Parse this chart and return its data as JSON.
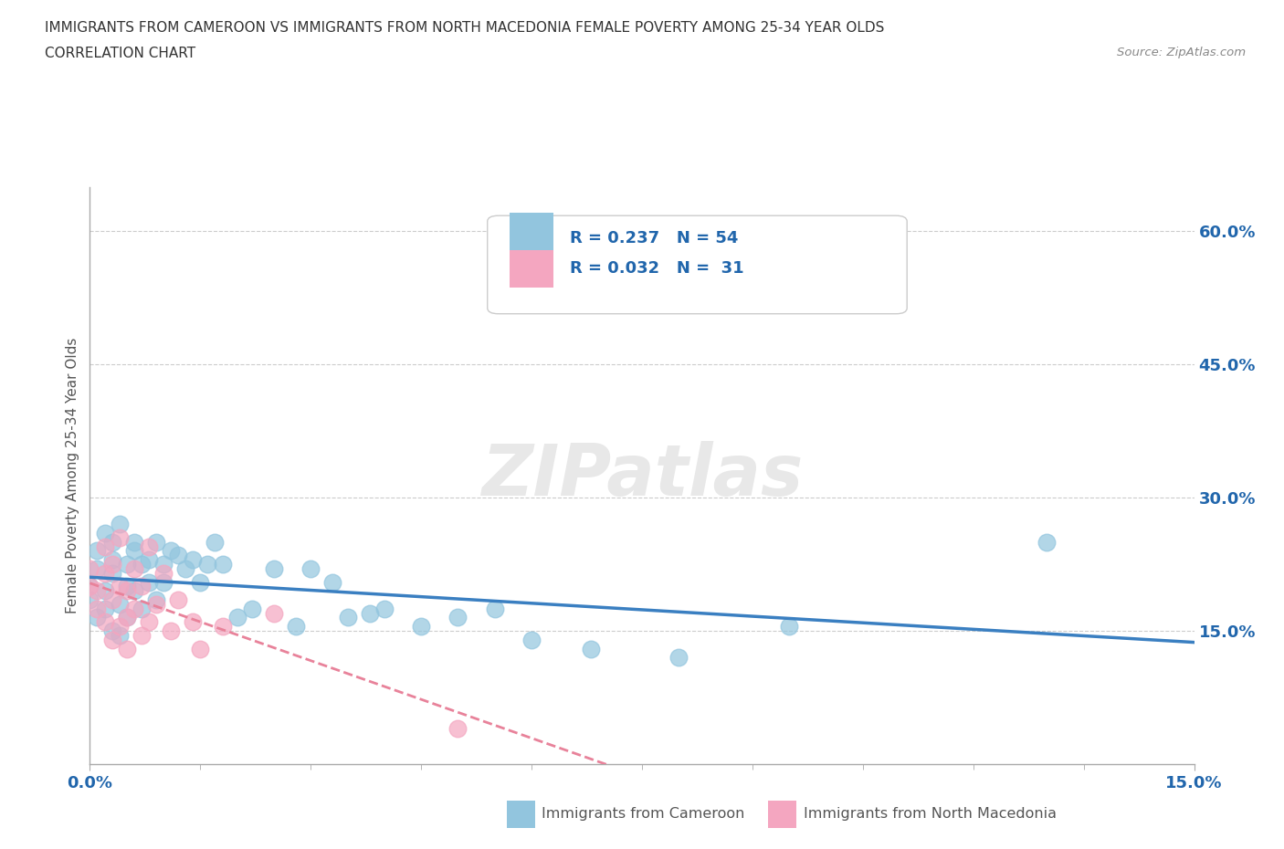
{
  "title_line1": "IMMIGRANTS FROM CAMEROON VS IMMIGRANTS FROM NORTH MACEDONIA FEMALE POVERTY AMONG 25-34 YEAR OLDS",
  "title_line2": "CORRELATION CHART",
  "source_text": "Source: ZipAtlas.com",
  "ylabel": "Female Poverty Among 25-34 Year Olds",
  "xlim": [
    0.0,
    0.15
  ],
  "ylim": [
    0.0,
    0.65
  ],
  "ytick_positions": [
    0.15,
    0.3,
    0.45,
    0.6
  ],
  "ytick_labels": [
    "15.0%",
    "30.0%",
    "45.0%",
    "60.0%"
  ],
  "xtick_positions": [
    0.0,
    0.15
  ],
  "xtick_labels": [
    "0.0%",
    "15.0%"
  ],
  "watermark": "ZIPatlas",
  "legend_text1": "R = 0.237   N = 54",
  "legend_text2": "R = 0.032   N =  31",
  "color_cameroon": "#92c5de",
  "color_n_macedonia": "#f4a6c0",
  "color_blue_text": "#2166ac",
  "regression_color_cameroon": "#3a7fc1",
  "regression_color_n_macedonia": "#e8829a",
  "background_color": "#ffffff",
  "cameroon_x": [
    0.0,
    0.0,
    0.001,
    0.001,
    0.001,
    0.002,
    0.002,
    0.002,
    0.003,
    0.003,
    0.003,
    0.003,
    0.004,
    0.004,
    0.004,
    0.005,
    0.005,
    0.005,
    0.006,
    0.006,
    0.006,
    0.007,
    0.007,
    0.008,
    0.008,
    0.009,
    0.009,
    0.01,
    0.01,
    0.011,
    0.012,
    0.013,
    0.014,
    0.015,
    0.016,
    0.017,
    0.018,
    0.02,
    0.022,
    0.025,
    0.028,
    0.03,
    0.033,
    0.035,
    0.038,
    0.04,
    0.045,
    0.05,
    0.055,
    0.06,
    0.068,
    0.08,
    0.095,
    0.13
  ],
  "cameroon_y": [
    0.185,
    0.2,
    0.22,
    0.165,
    0.24,
    0.26,
    0.175,
    0.195,
    0.215,
    0.23,
    0.15,
    0.25,
    0.27,
    0.145,
    0.18,
    0.225,
    0.165,
    0.2,
    0.24,
    0.195,
    0.25,
    0.175,
    0.225,
    0.205,
    0.23,
    0.185,
    0.25,
    0.225,
    0.205,
    0.24,
    0.235,
    0.22,
    0.23,
    0.205,
    0.225,
    0.25,
    0.225,
    0.165,
    0.175,
    0.22,
    0.155,
    0.22,
    0.205,
    0.165,
    0.17,
    0.175,
    0.155,
    0.165,
    0.175,
    0.14,
    0.13,
    0.12,
    0.155,
    0.25
  ],
  "n_macedonia_x": [
    0.0,
    0.0,
    0.001,
    0.001,
    0.002,
    0.002,
    0.002,
    0.003,
    0.003,
    0.003,
    0.004,
    0.004,
    0.004,
    0.005,
    0.005,
    0.005,
    0.006,
    0.006,
    0.007,
    0.007,
    0.008,
    0.008,
    0.009,
    0.01,
    0.011,
    0.012,
    0.014,
    0.015,
    0.018,
    0.025,
    0.05
  ],
  "n_macedonia_y": [
    0.2,
    0.22,
    0.175,
    0.195,
    0.16,
    0.215,
    0.245,
    0.14,
    0.185,
    0.225,
    0.155,
    0.2,
    0.255,
    0.13,
    0.165,
    0.195,
    0.175,
    0.22,
    0.145,
    0.2,
    0.16,
    0.245,
    0.18,
    0.215,
    0.15,
    0.185,
    0.16,
    0.13,
    0.155,
    0.17,
    0.04
  ]
}
